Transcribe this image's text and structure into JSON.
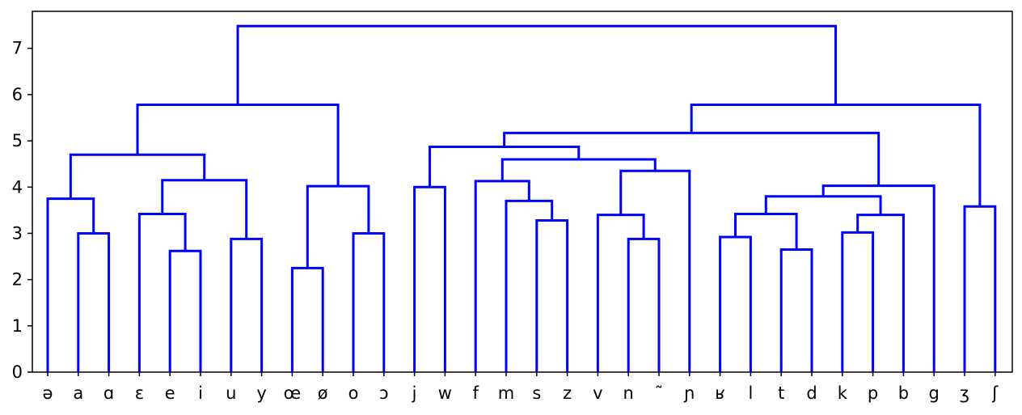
{
  "chart_data": {
    "type": "dendrogram",
    "title": "",
    "xlabel": "",
    "ylabel": "",
    "ylim": [
      0,
      7.8
    ],
    "yticks": [
      0,
      1,
      2,
      3,
      4,
      5,
      6,
      7
    ],
    "link_color": "#0000ff",
    "grid": false,
    "leaves": [
      "ə",
      "a",
      "ɑ",
      "ɛ",
      "e",
      "i",
      "u",
      "y",
      "œ",
      "ø",
      "o",
      "ɔ",
      "j",
      "w",
      "f",
      "m",
      "s",
      "z",
      "v",
      "n",
      "˜",
      "ɲ",
      "ʁ",
      "l",
      "t",
      "d",
      "k",
      "p",
      "b",
      "g",
      "ʒ",
      "ʃ"
    ],
    "merges": [
      {
        "left": 1,
        "right": 2,
        "height": 3.0
      },
      {
        "left": 0,
        "right": "m0",
        "height": 3.75
      },
      {
        "left": 4,
        "right": 5,
        "height": 2.62
      },
      {
        "left": 3,
        "right": "m2",
        "height": 3.42
      },
      {
        "left": 6,
        "right": 7,
        "height": 2.88
      },
      {
        "left": "m3",
        "right": "m4",
        "height": 4.15
      },
      {
        "left": "m1",
        "right": "m5",
        "height": 4.7
      },
      {
        "left": 8,
        "right": 9,
        "height": 2.25
      },
      {
        "left": 10,
        "right": 11,
        "height": 3.0
      },
      {
        "left": "m7",
        "right": "m8",
        "height": 4.02
      },
      {
        "left": "m6",
        "right": "m9",
        "height": 5.78
      },
      {
        "left": 12,
        "right": 13,
        "height": 4.0
      },
      {
        "left": 16,
        "right": 17,
        "height": 3.28
      },
      {
        "left": 15,
        "right": "m12",
        "height": 3.7
      },
      {
        "left": 14,
        "right": "m13",
        "height": 4.13
      },
      {
        "left": 19,
        "right": 20,
        "height": 2.88
      },
      {
        "left": 18,
        "right": "m15",
        "height": 3.4
      },
      {
        "left": "m16",
        "right": 21,
        "height": 4.35
      },
      {
        "left": "m14",
        "right": "m17",
        "height": 4.6
      },
      {
        "left": "m11",
        "right": "m18",
        "height": 4.87
      },
      {
        "left": 22,
        "right": 23,
        "height": 2.92
      },
      {
        "left": 24,
        "right": 25,
        "height": 2.65
      },
      {
        "left": "m20",
        "right": "m21",
        "height": 3.42
      },
      {
        "left": 26,
        "right": 27,
        "height": 3.02
      },
      {
        "left": "m23",
        "right": 28,
        "height": 3.4
      },
      {
        "left": "m22",
        "right": "m24",
        "height": 3.8
      },
      {
        "left": "m25",
        "right": 29,
        "height": 4.03
      },
      {
        "left": "m19",
        "right": "m26",
        "height": 5.17
      },
      {
        "left": 30,
        "right": 31,
        "height": 3.58
      },
      {
        "left": "m27",
        "right": "m28",
        "height": 5.78
      },
      {
        "left": "m10",
        "right": "m29",
        "height": 7.48
      }
    ]
  }
}
